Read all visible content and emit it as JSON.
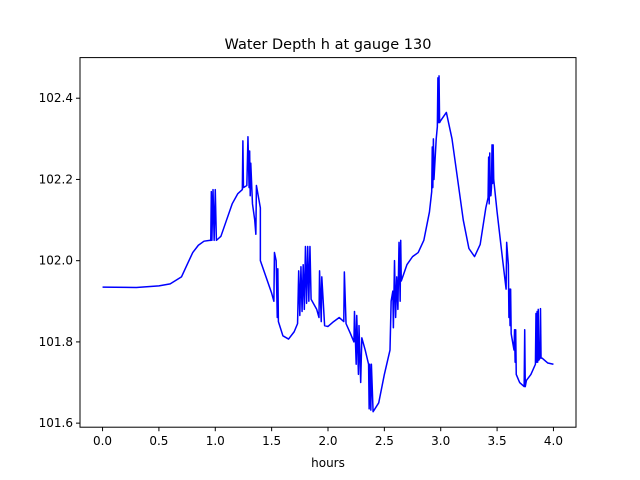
{
  "chart_data": {
    "type": "line",
    "title": "Water Depth h at gauge 130",
    "xlabel": "hours",
    "ylabel": "",
    "xlim": [
      -0.2,
      4.2
    ],
    "ylim": [
      101.59,
      102.5
    ],
    "xticks": [
      0.0,
      0.5,
      1.0,
      1.5,
      2.0,
      2.5,
      3.0,
      3.5,
      4.0
    ],
    "xtick_labels": [
      "0.0",
      "0.5",
      "1.0",
      "1.5",
      "2.0",
      "2.5",
      "3.0",
      "3.5",
      "4.0"
    ],
    "yticks": [
      101.6,
      101.8,
      102.0,
      102.2,
      102.4
    ],
    "ytick_labels": [
      "101.6",
      "101.8",
      "102.0",
      "102.2",
      "102.4"
    ],
    "grid": false,
    "legend": "none",
    "series": [
      {
        "color": "#0000ff",
        "points": [
          [
            0.0,
            101.935
          ],
          [
            0.3,
            101.934
          ],
          [
            0.5,
            101.938
          ],
          [
            0.6,
            101.943
          ],
          [
            0.7,
            101.96
          ],
          [
            0.75,
            101.99
          ],
          [
            0.8,
            102.02
          ],
          [
            0.85,
            102.038
          ],
          [
            0.9,
            102.048
          ],
          [
            0.95,
            102.05
          ],
          [
            0.96,
            102.05
          ],
          [
            0.965,
            102.17
          ],
          [
            0.97,
            102.05
          ],
          [
            0.98,
            102.175
          ],
          [
            0.99,
            102.05
          ],
          [
            1.0,
            102.175
          ],
          [
            1.01,
            102.05
          ],
          [
            1.05,
            102.06
          ],
          [
            1.1,
            102.1
          ],
          [
            1.15,
            102.14
          ],
          [
            1.2,
            102.165
          ],
          [
            1.24,
            102.175
          ],
          [
            1.245,
            102.295
          ],
          [
            1.25,
            102.18
          ],
          [
            1.28,
            102.185
          ],
          [
            1.29,
            102.305
          ],
          [
            1.3,
            102.18
          ],
          [
            1.305,
            102.27
          ],
          [
            1.31,
            102.16
          ],
          [
            1.315,
            102.24
          ],
          [
            1.33,
            102.14
          ],
          [
            1.35,
            102.1
          ],
          [
            1.36,
            102.065
          ],
          [
            1.365,
            102.185
          ],
          [
            1.4,
            102.13
          ],
          [
            1.4,
            102.0
          ],
          [
            1.45,
            101.96
          ],
          [
            1.5,
            101.92
          ],
          [
            1.52,
            101.9
          ],
          [
            1.525,
            102.02
          ],
          [
            1.54,
            102.0
          ],
          [
            1.55,
            101.86
          ],
          [
            1.555,
            101.98
          ],
          [
            1.56,
            101.85
          ],
          [
            1.6,
            101.815
          ],
          [
            1.65,
            101.807
          ],
          [
            1.7,
            101.825
          ],
          [
            1.73,
            101.845
          ],
          [
            1.74,
            101.975
          ],
          [
            1.75,
            101.865
          ],
          [
            1.76,
            101.985
          ],
          [
            1.77,
            101.875
          ],
          [
            1.78,
            101.99
          ],
          [
            1.79,
            101.88
          ],
          [
            1.8,
            102.035
          ],
          [
            1.81,
            101.895
          ],
          [
            1.82,
            102.035
          ],
          [
            1.83,
            101.9
          ],
          [
            1.84,
            102.035
          ],
          [
            1.85,
            101.905
          ],
          [
            1.9,
            101.88
          ],
          [
            1.92,
            101.86
          ],
          [
            1.925,
            101.975
          ],
          [
            1.94,
            101.85
          ],
          [
            1.945,
            101.96
          ],
          [
            1.97,
            101.84
          ],
          [
            2.0,
            101.838
          ],
          [
            2.05,
            101.85
          ],
          [
            2.1,
            101.86
          ],
          [
            2.14,
            101.85
          ],
          [
            2.145,
            101.972
          ],
          [
            2.16,
            101.845
          ],
          [
            2.2,
            101.82
          ],
          [
            2.23,
            101.8
          ],
          [
            2.235,
            101.875
          ],
          [
            2.25,
            101.745
          ],
          [
            2.255,
            101.865
          ],
          [
            2.27,
            101.72
          ],
          [
            2.275,
            101.84
          ],
          [
            2.29,
            101.7
          ],
          [
            2.3,
            101.81
          ],
          [
            2.33,
            101.78
          ],
          [
            2.36,
            101.745
          ],
          [
            2.365,
            101.635
          ],
          [
            2.37,
            101.745
          ],
          [
            2.38,
            101.632
          ],
          [
            2.385,
            101.745
          ],
          [
            2.4,
            101.628
          ],
          [
            2.45,
            101.65
          ],
          [
            2.5,
            101.72
          ],
          [
            2.55,
            101.78
          ],
          [
            2.56,
            101.9
          ],
          [
            2.575,
            101.925
          ],
          [
            2.58,
            101.835
          ],
          [
            2.59,
            102.0
          ],
          [
            2.6,
            101.86
          ],
          [
            2.61,
            101.96
          ],
          [
            2.62,
            101.88
          ],
          [
            2.63,
            102.045
          ],
          [
            2.64,
            101.9
          ],
          [
            2.645,
            102.05
          ],
          [
            2.65,
            101.95
          ],
          [
            2.7,
            101.99
          ],
          [
            2.75,
            102.01
          ],
          [
            2.8,
            102.02
          ],
          [
            2.85,
            102.05
          ],
          [
            2.9,
            102.12
          ],
          [
            2.92,
            102.17
          ],
          [
            2.925,
            102.28
          ],
          [
            2.93,
            102.18
          ],
          [
            2.935,
            102.3
          ],
          [
            2.94,
            102.2
          ],
          [
            2.95,
            102.25
          ],
          [
            2.96,
            102.3
          ],
          [
            2.97,
            102.33
          ],
          [
            2.975,
            102.45
          ],
          [
            2.98,
            102.34
          ],
          [
            2.985,
            102.455
          ],
          [
            2.99,
            102.34
          ],
          [
            3.0,
            102.345
          ],
          [
            3.05,
            102.365
          ],
          [
            3.1,
            102.3
          ],
          [
            3.15,
            102.2
          ],
          [
            3.2,
            102.1
          ],
          [
            3.25,
            102.03
          ],
          [
            3.3,
            102.01
          ],
          [
            3.35,
            102.04
          ],
          [
            3.4,
            102.13
          ],
          [
            3.42,
            102.155
          ],
          [
            3.425,
            102.255
          ],
          [
            3.43,
            102.14
          ],
          [
            3.435,
            102.265
          ],
          [
            3.44,
            102.16
          ],
          [
            3.445,
            102.16
          ],
          [
            3.45,
            102.18
          ],
          [
            3.455,
            102.285
          ],
          [
            3.46,
            102.19
          ],
          [
            3.465,
            102.285
          ],
          [
            3.47,
            102.2
          ],
          [
            3.5,
            102.12
          ],
          [
            3.55,
            102.0
          ],
          [
            3.58,
            101.93
          ],
          [
            3.585,
            102.045
          ],
          [
            3.6,
            101.99
          ],
          [
            3.605,
            101.86
          ],
          [
            3.61,
            101.93
          ],
          [
            3.615,
            101.84
          ],
          [
            3.62,
            101.93
          ],
          [
            3.625,
            101.82
          ],
          [
            3.65,
            101.78
          ],
          [
            3.655,
            101.83
          ],
          [
            3.66,
            101.75
          ],
          [
            3.665,
            101.83
          ],
          [
            3.67,
            101.72
          ],
          [
            3.7,
            101.7
          ],
          [
            3.74,
            101.69
          ],
          [
            3.745,
            101.83
          ],
          [
            3.75,
            101.69
          ],
          [
            3.76,
            101.705
          ],
          [
            3.8,
            101.72
          ],
          [
            3.84,
            101.745
          ],
          [
            3.845,
            101.87
          ],
          [
            3.85,
            101.75
          ],
          [
            3.855,
            101.875
          ],
          [
            3.86,
            101.75
          ],
          [
            3.865,
            101.88
          ],
          [
            3.87,
            101.755
          ],
          [
            3.88,
            101.76
          ],
          [
            3.885,
            101.882
          ],
          [
            3.89,
            101.76
          ],
          [
            3.9,
            101.76
          ],
          [
            3.95,
            101.748
          ],
          [
            4.0,
            101.745
          ]
        ]
      }
    ]
  }
}
